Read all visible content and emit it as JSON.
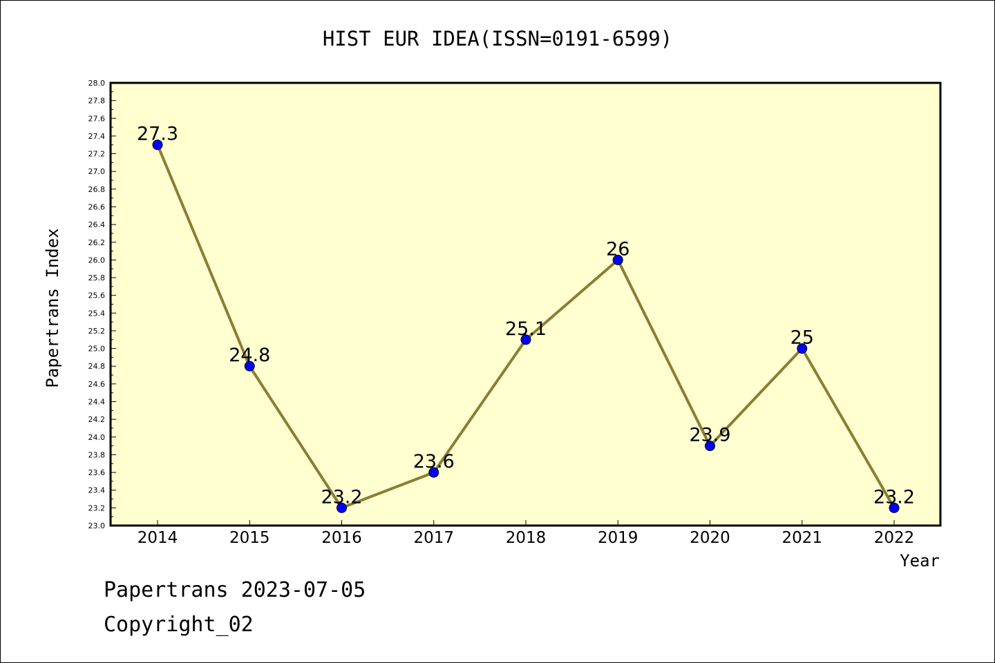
{
  "chart_data": {
    "type": "line",
    "title": "HIST EUR IDEA(ISSN=0191-6599)",
    "xlabel": "Year",
    "ylabel": "Papertrans Index",
    "categories": [
      "2014",
      "2015",
      "2016",
      "2017",
      "2018",
      "2019",
      "2020",
      "2021",
      "2022"
    ],
    "series": [
      {
        "values": [
          27.3,
          24.8,
          23.2,
          23.6,
          25.1,
          26.0,
          23.9,
          25.0,
          23.2
        ],
        "labels": [
          "27.3",
          "24.8",
          "23.2",
          "23.6",
          "25.1",
          "26",
          "23.9",
          "25",
          "23.2"
        ]
      }
    ],
    "ylim": [
      23.0,
      28.0
    ],
    "ytick_step": 0.2,
    "grid": false,
    "legend": "none",
    "colors": {
      "plot_background": "#ffffd0",
      "line": "#8b7d33",
      "marker": "#0000ff"
    }
  },
  "footer": {
    "line1": "Papertrans 2023-07-05",
    "line2": "Copyright_02"
  }
}
